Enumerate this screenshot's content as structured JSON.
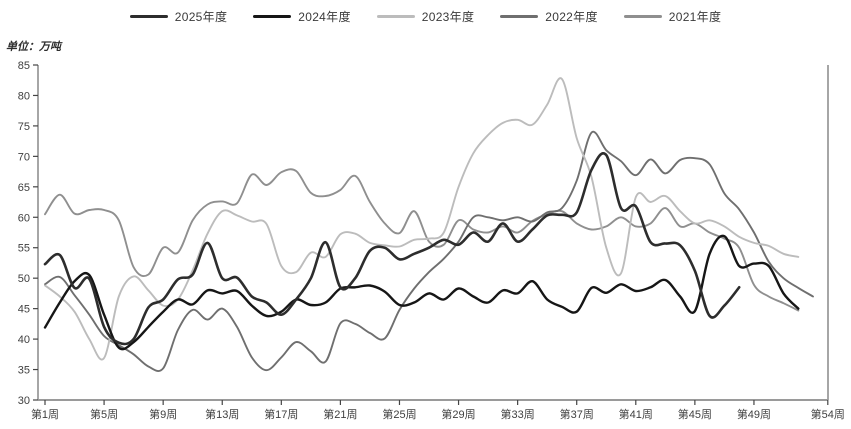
{
  "unit_label": "单位：万吨",
  "legend": [
    {
      "label": "2025年度",
      "color": "#2d2d2d"
    },
    {
      "label": "2024年度",
      "color": "#161616"
    },
    {
      "label": "2023年度",
      "color": "#bcbcbc"
    },
    {
      "label": "2022年度",
      "color": "#6f6f6f"
    },
    {
      "label": "2021年度",
      "color": "#8f8f8f"
    }
  ],
  "chart_data": {
    "type": "line",
    "title": "",
    "xlabel": "",
    "ylabel": "万吨",
    "ylim": [
      30,
      85
    ],
    "y_ticks": [
      30,
      35,
      40,
      45,
      50,
      55,
      60,
      65,
      70,
      75,
      80,
      85
    ],
    "x_total_weeks": 54,
    "x_tick_weeks": [
      1,
      5,
      9,
      13,
      17,
      21,
      25,
      29,
      33,
      37,
      41,
      45,
      49,
      54
    ],
    "x_tick_labels": [
      "第1周",
      "第5周",
      "第9周",
      "第13周",
      "第17周",
      "第21周",
      "第25周",
      "第29周",
      "第33周",
      "第37周",
      "第41周",
      "第45周",
      "第49周",
      "第54周"
    ],
    "grid": false,
    "legend_position": "top-center",
    "series": [
      {
        "name": "2025年度",
        "color": "#2d2d2d",
        "width": 2.6,
        "start_week": 1,
        "values": [
          52.3,
          53.8,
          48.4,
          49.9,
          42.0,
          39.4,
          40.0,
          45.2,
          46.5,
          49.8,
          50.6,
          55.8,
          50.0,
          50.1,
          47.0,
          46.0,
          44.0,
          46.5,
          50.0,
          55.9,
          48.5,
          50.0,
          54.5,
          55.0,
          53.1,
          54.0,
          55.0,
          56.3,
          55.5,
          57.5,
          56.0,
          59.0,
          56.0,
          58.0,
          60.3,
          60.4,
          60.8,
          67.8,
          70.2,
          61.5,
          61.8,
          55.9,
          55.7,
          55.4,
          51.2,
          43.8,
          45.5,
          48.5
        ]
      },
      {
        "name": "2024年度",
        "color": "#161616",
        "width": 2.4,
        "start_week": 1,
        "values": [
          41.9,
          46.0,
          49.5,
          50.5,
          44.0,
          38.6,
          39.5,
          42.0,
          44.5,
          46.5,
          45.7,
          48.0,
          47.5,
          47.9,
          45.5,
          43.8,
          44.5,
          46.5,
          45.6,
          46.0,
          48.3,
          48.5,
          48.8,
          47.8,
          45.6,
          46.0,
          47.5,
          46.5,
          48.3,
          47.0,
          46.0,
          48.0,
          47.5,
          49.5,
          46.5,
          45.3,
          44.5,
          48.4,
          47.6,
          49.0,
          47.9,
          48.5,
          49.7,
          47.0,
          44.6,
          54.0,
          56.9,
          52.0,
          52.4,
          52.0,
          47.5,
          45.0
        ]
      },
      {
        "name": "2023年度",
        "color": "#bcbcbc",
        "width": 1.9,
        "start_week": 1,
        "values": [
          48.8,
          47.0,
          44.5,
          40.0,
          36.9,
          47.0,
          50.3,
          48.0,
          45.5,
          46.5,
          51.3,
          57.3,
          61.0,
          60.3,
          59.3,
          58.9,
          52.0,
          51.0,
          54.2,
          53.5,
          57.2,
          57.3,
          55.8,
          55.4,
          55.2,
          56.3,
          56.5,
          57.5,
          65.0,
          70.5,
          73.5,
          75.5,
          76.0,
          75.2,
          78.5,
          82.7,
          73.0,
          66.6,
          55.0,
          50.8,
          63.3,
          62.5,
          63.5,
          61.0,
          59.0,
          59.5,
          58.5,
          56.8,
          55.8,
          55.3,
          54.0,
          53.5
        ]
      },
      {
        "name": "2022年度",
        "color": "#6f6f6f",
        "width": 1.9,
        "start_week": 1,
        "values": [
          49.0,
          50.2,
          47.2,
          44.0,
          40.5,
          39.0,
          37.5,
          35.5,
          35.2,
          41.5,
          44.8,
          43.2,
          45.0,
          42.0,
          37.0,
          34.9,
          37.0,
          39.5,
          38.0,
          36.3,
          42.6,
          42.5,
          41.0,
          40.1,
          44.8,
          48.3,
          51.0,
          53.2,
          56.0,
          60.0,
          60.0,
          59.5,
          60.0,
          59.3,
          60.8,
          61.5,
          66.0,
          73.9,
          71.0,
          69.2,
          66.9,
          69.5,
          67.2,
          69.4,
          69.7,
          68.7,
          63.9,
          61.3,
          57.5,
          52.7,
          50.0,
          48.4,
          47.0
        ]
      },
      {
        "name": "2021年度",
        "color": "#8f8f8f",
        "width": 1.9,
        "start_week": 1,
        "values": [
          60.5,
          63.7,
          60.6,
          61.2,
          61.2,
          59.5,
          51.8,
          50.6,
          55.0,
          54.2,
          59.5,
          62.1,
          62.6,
          62.3,
          67.0,
          65.3,
          67.4,
          67.6,
          64.0,
          63.5,
          64.5,
          66.8,
          62.5,
          59.0,
          57.4,
          61.0,
          56.0,
          55.5,
          59.5,
          58.0,
          57.5,
          58.5,
          57.5,
          59.4,
          60.5,
          61.0,
          59.0,
          58.0,
          58.5,
          60.0,
          58.5,
          59.0,
          61.5,
          58.5,
          59.0,
          57.5,
          56.5,
          55.0,
          48.9,
          47.0,
          45.9,
          44.7
        ]
      }
    ]
  },
  "axes_style": {
    "bottom_axis_color": "#9a9a9a",
    "side_axis_color": "#6b6b6b",
    "tick_color": "#444444"
  }
}
